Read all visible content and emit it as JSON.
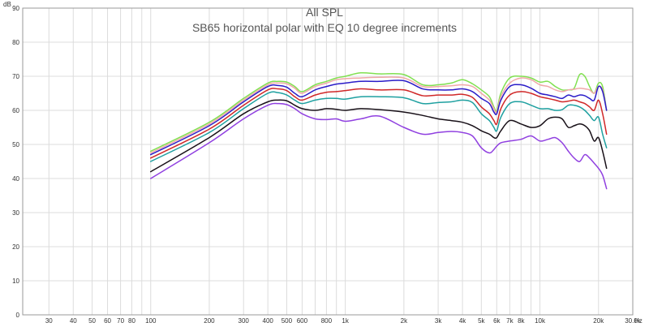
{
  "chart_data": {
    "type": "line",
    "title": "All SPL",
    "subtitle": "SB65 horizontal polar with EQ 10 degree increments",
    "ylabel": "dB",
    "xunit": "Hz",
    "xscale": "log",
    "xlim": [
      22,
      30000
    ],
    "ylim": [
      0,
      90
    ],
    "grid": true,
    "legend": "none",
    "yticks": [
      0,
      10,
      20,
      30,
      40,
      50,
      60,
      70,
      80,
      90
    ],
    "xticks": [
      {
        "v": 30,
        "label": "30"
      },
      {
        "v": 40,
        "label": "40"
      },
      {
        "v": 50,
        "label": "50"
      },
      {
        "v": 60,
        "label": "60"
      },
      {
        "v": 70,
        "label": "70"
      },
      {
        "v": 80,
        "label": "80"
      },
      {
        "v": 100,
        "label": "100"
      },
      {
        "v": 200,
        "label": "200"
      },
      {
        "v": 300,
        "label": "300"
      },
      {
        "v": 400,
        "label": "400"
      },
      {
        "v": 500,
        "label": "500"
      },
      {
        "v": 600,
        "label": "600"
      },
      {
        "v": 800,
        "label": "800"
      },
      {
        "v": 1000,
        "label": "1k"
      },
      {
        "v": 2000,
        "label": "2k"
      },
      {
        "v": 3000,
        "label": "3k"
      },
      {
        "v": 4000,
        "label": "4k"
      },
      {
        "v": 5000,
        "label": "5k"
      },
      {
        "v": 6000,
        "label": "6k"
      },
      {
        "v": 7000,
        "label": "7k"
      },
      {
        "v": 8000,
        "label": "8k"
      },
      {
        "v": 10000,
        "label": "10k"
      },
      {
        "v": 20000,
        "label": "20k"
      },
      {
        "v": 30000,
        "label": "30.0k"
      }
    ],
    "series": [
      {
        "color": "#80e050",
        "x": [
          100,
          200,
          300,
          400,
          450,
          500,
          550,
          600,
          700,
          800,
          900,
          1000,
          1200,
          1500,
          2000,
          2500,
          3000,
          3500,
          4000,
          4500,
          5000,
          5500,
          5800,
          6000,
          6300,
          7000,
          8000,
          9000,
          10000,
          11000,
          12000,
          13000,
          14000,
          15000,
          16000,
          17000,
          18000,
          19000,
          20000,
          21000,
          22000
        ],
        "y": [
          48,
          56.5,
          63.5,
          68,
          68.5,
          68.3,
          67,
          65.5,
          67.5,
          68.5,
          69.5,
          70,
          71,
          70.7,
          70.5,
          67.5,
          67.5,
          68,
          69,
          67.8,
          66,
          64,
          61,
          60,
          65,
          69.5,
          70,
          69.5,
          68.3,
          68.5,
          67,
          66,
          66,
          66.5,
          70.5,
          70,
          67,
          65,
          68,
          67,
          60
        ]
      },
      {
        "color": "#f0a8a8",
        "x": [
          100,
          200,
          300,
          400,
          450,
          500,
          550,
          600,
          700,
          800,
          900,
          1000,
          1200,
          1500,
          2000,
          2500,
          3000,
          3500,
          4000,
          4500,
          5000,
          5500,
          5800,
          6000,
          6300,
          7000,
          8000,
          9000,
          10000,
          11000,
          12000,
          13000,
          14000,
          15000,
          16000,
          17000,
          18000,
          19000,
          20000,
          21000,
          22000
        ],
        "y": [
          47.5,
          56,
          63,
          67.5,
          68,
          67.8,
          66.5,
          65,
          67,
          68,
          69,
          69.3,
          69.5,
          69.7,
          69.5,
          67,
          67,
          67.2,
          67.5,
          67,
          65,
          63,
          60.5,
          59.5,
          64,
          68,
          69.5,
          69,
          67.5,
          67,
          66,
          65.5,
          66,
          66.2,
          66.5,
          66.3,
          66,
          65,
          67,
          66,
          60
        ]
      },
      {
        "color": "#2a1cc8",
        "x": [
          100,
          200,
          300,
          400,
          450,
          500,
          550,
          600,
          700,
          800,
          900,
          1000,
          1200,
          1500,
          2000,
          2500,
          3000,
          3500,
          4000,
          4500,
          5000,
          5500,
          5800,
          6000,
          6300,
          7000,
          8000,
          9000,
          10000,
          11000,
          12000,
          13000,
          14000,
          15000,
          16000,
          17000,
          18000,
          19000,
          20000,
          21000,
          22000
        ],
        "y": [
          47,
          55.5,
          62.5,
          67,
          67.3,
          66.8,
          65,
          64,
          66,
          67,
          67.7,
          68,
          68.5,
          68.5,
          68.7,
          66.3,
          66,
          66,
          66.3,
          65.5,
          63.5,
          62,
          59.5,
          59,
          63,
          67,
          67.5,
          66.5,
          65,
          64.5,
          64,
          63.5,
          64.5,
          64,
          64.5,
          64.3,
          63.5,
          63,
          67,
          65.5,
          60
        ]
      },
      {
        "color": "#d02828",
        "x": [
          100,
          200,
          300,
          400,
          450,
          500,
          550,
          600,
          700,
          800,
          900,
          1000,
          1200,
          1500,
          2000,
          2500,
          3000,
          3500,
          4000,
          4500,
          5000,
          5500,
          5800,
          6000,
          6300,
          7000,
          8000,
          9000,
          10000,
          11000,
          12000,
          13000,
          14000,
          15000,
          16000,
          17000,
          18000,
          19000,
          20000,
          21000,
          22000
        ],
        "y": [
          46,
          54.5,
          61.5,
          66,
          66.3,
          65.8,
          64,
          63,
          64.5,
          65.3,
          65.5,
          65.8,
          66.3,
          66,
          66,
          64.3,
          64.5,
          64.5,
          64.7,
          63.8,
          61,
          59,
          57,
          56,
          60.5,
          64.5,
          65.5,
          65,
          64,
          63.5,
          63,
          62.5,
          62.7,
          63,
          62.5,
          62,
          61,
          60,
          63,
          59,
          53
        ]
      },
      {
        "color": "#1ea0a0",
        "x": [
          100,
          200,
          300,
          400,
          450,
          500,
          550,
          600,
          700,
          800,
          900,
          1000,
          1200,
          1500,
          2000,
          2500,
          3000,
          3500,
          4000,
          4500,
          5000,
          5500,
          5800,
          6000,
          6300,
          7000,
          8000,
          9000,
          10000,
          11000,
          12000,
          13000,
          14000,
          15000,
          16000,
          17000,
          18000,
          19000,
          20000,
          21000,
          22000
        ],
        "y": [
          45,
          53.5,
          60.5,
          65,
          65.2,
          64.5,
          63,
          62,
          63,
          63.5,
          63.5,
          63.3,
          64,
          64,
          63.7,
          62,
          62.3,
          62.5,
          63,
          62.3,
          59,
          57,
          55,
          54,
          58,
          62,
          62.5,
          61.5,
          60.5,
          60.5,
          60,
          60.2,
          61.5,
          61.5,
          61,
          60,
          58.5,
          57,
          58,
          53,
          49
        ]
      },
      {
        "color": "#181018",
        "x": [
          100,
          200,
          300,
          400,
          450,
          500,
          550,
          600,
          700,
          800,
          900,
          1000,
          1200,
          1500,
          2000,
          2500,
          3000,
          3500,
          4000,
          4500,
          5000,
          5500,
          5800,
          6000,
          6300,
          7000,
          8000,
          9000,
          10000,
          11000,
          12000,
          13000,
          14000,
          15000,
          16000,
          17000,
          18000,
          19000,
          20000,
          21000,
          22000
        ],
        "y": [
          42,
          52,
          59,
          62.5,
          63,
          62.8,
          61.5,
          60.5,
          60,
          60.5,
          60.3,
          60,
          60.5,
          60.2,
          59.5,
          58.5,
          57.5,
          57,
          56.5,
          55.5,
          54,
          53,
          52,
          52,
          54,
          57,
          56,
          55,
          55.5,
          57.5,
          58,
          57.5,
          55,
          55.5,
          56,
          55.5,
          54,
          51,
          52,
          48,
          43
        ]
      },
      {
        "color": "#9040e0",
        "x": [
          100,
          200,
          300,
          400,
          450,
          500,
          550,
          600,
          700,
          800,
          900,
          1000,
          1200,
          1500,
          2000,
          2500,
          3000,
          3500,
          4000,
          4500,
          5000,
          5500,
          5800,
          6000,
          6300,
          7000,
          8000,
          9000,
          10000,
          11000,
          12000,
          13000,
          14000,
          15000,
          16000,
          17000,
          18000,
          19000,
          20000,
          21000,
          22000
        ],
        "y": [
          40,
          50.5,
          57.5,
          61.5,
          62,
          61.7,
          60.5,
          59,
          57.5,
          57.3,
          57.5,
          56.8,
          57.5,
          58.3,
          55,
          53,
          53.5,
          53.8,
          53.5,
          52.5,
          49,
          47.5,
          48.5,
          49.5,
          50.5,
          51,
          51.5,
          52.5,
          51,
          51.5,
          52,
          50.5,
          48,
          46,
          45,
          47,
          46,
          44.5,
          43,
          41,
          37
        ]
      }
    ]
  }
}
